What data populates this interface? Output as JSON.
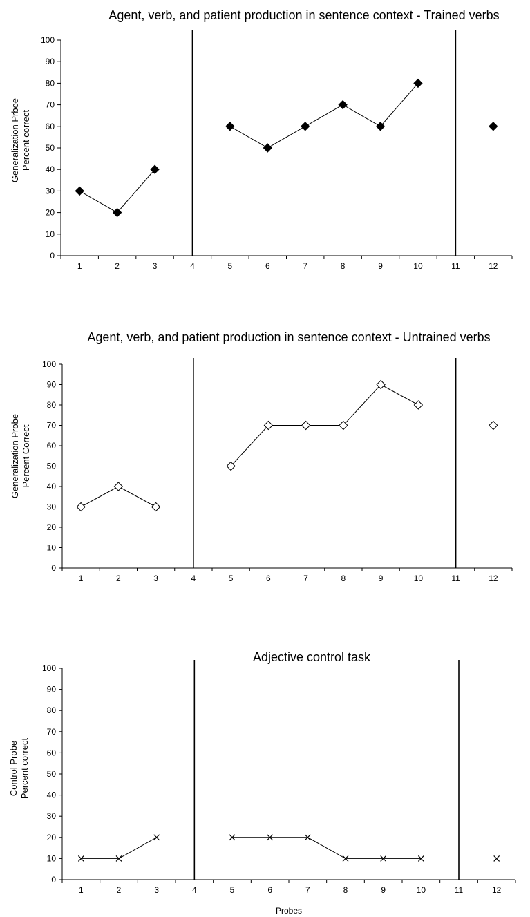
{
  "chart_data": [
    {
      "type": "line",
      "title": "Agent, verb, and patient production in sentence context - Trained verbs",
      "ylabel_lines": [
        "Generalization Prboe",
        "Percent correct"
      ],
      "xlabel": "",
      "categories": [
        1,
        2,
        3,
        4,
        5,
        6,
        7,
        8,
        9,
        10,
        11,
        12
      ],
      "ylim": [
        0,
        100
      ],
      "yticks": [
        0,
        10,
        20,
        30,
        40,
        50,
        60,
        70,
        80,
        90,
        100
      ],
      "phase_change_lines_at": [
        4,
        11
      ],
      "marker": "filled-diamond",
      "series": [
        {
          "segments": [
            [
              [
                1,
                30
              ],
              [
                2,
                20
              ],
              [
                3,
                40
              ]
            ],
            [
              [
                5,
                60
              ],
              [
                6,
                50
              ],
              [
                7,
                60
              ],
              [
                8,
                70
              ],
              [
                9,
                60
              ],
              [
                10,
                80
              ]
            ],
            [
              [
                12,
                60
              ]
            ]
          ]
        }
      ],
      "grid": false
    },
    {
      "type": "line",
      "title": "Agent, verb, and patient production in sentence context - Untrained verbs",
      "ylabel_lines": [
        "Generalization Probe",
        "Percent Correct"
      ],
      "xlabel": "",
      "categories": [
        1,
        2,
        3,
        4,
        5,
        6,
        7,
        8,
        9,
        10,
        11,
        12
      ],
      "ylim": [
        0,
        100
      ],
      "yticks": [
        0,
        10,
        20,
        30,
        40,
        50,
        60,
        70,
        80,
        90,
        100
      ],
      "phase_change_lines_at": [
        4,
        11
      ],
      "marker": "open-diamond",
      "series": [
        {
          "segments": [
            [
              [
                1,
                30
              ],
              [
                2,
                40
              ],
              [
                3,
                30
              ]
            ],
            [
              [
                5,
                50
              ],
              [
                6,
                70
              ],
              [
                7,
                70
              ],
              [
                8,
                70
              ],
              [
                9,
                90
              ],
              [
                10,
                80
              ]
            ],
            [
              [
                12,
                70
              ]
            ]
          ]
        }
      ],
      "grid": false
    },
    {
      "type": "line",
      "title": "Adjective control task",
      "ylabel_lines": [
        "Control Probe",
        "Percent correct"
      ],
      "xlabel": "Probes",
      "categories": [
        1,
        2,
        3,
        4,
        5,
        6,
        7,
        8,
        9,
        10,
        11,
        12
      ],
      "ylim": [
        0,
        100
      ],
      "yticks": [
        0,
        10,
        20,
        30,
        40,
        50,
        60,
        70,
        80,
        90,
        100
      ],
      "phase_change_lines_at": [
        4,
        11
      ],
      "marker": "x",
      "series": [
        {
          "segments": [
            [
              [
                1,
                10
              ],
              [
                2,
                10
              ],
              [
                3,
                20
              ]
            ],
            [
              [
                5,
                20
              ],
              [
                6,
                20
              ],
              [
                7,
                20
              ],
              [
                8,
                10
              ],
              [
                9,
                10
              ],
              [
                10,
                10
              ]
            ],
            [
              [
                12,
                10
              ]
            ]
          ]
        }
      ],
      "grid": false
    }
  ]
}
